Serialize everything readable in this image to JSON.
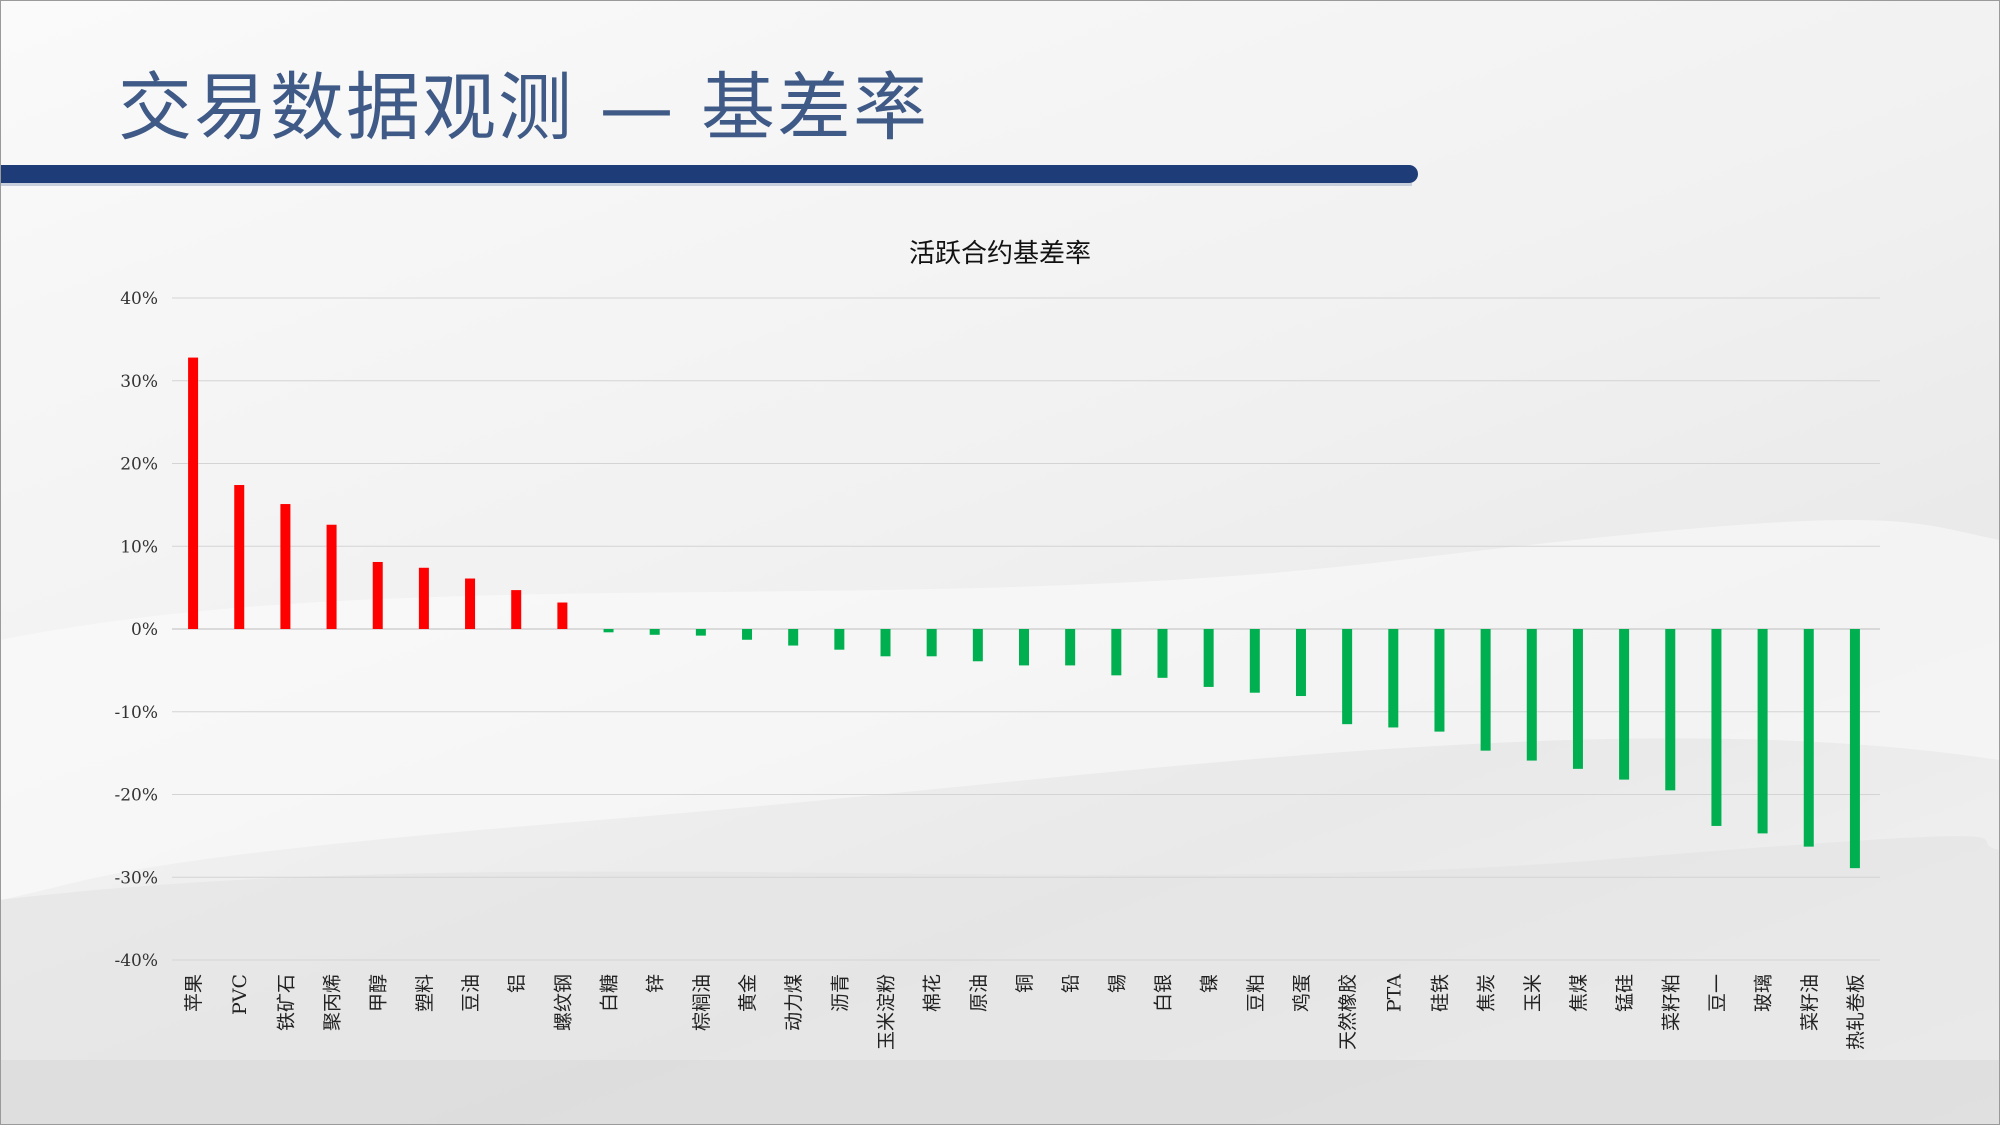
{
  "slide": {
    "title": "交易数据观测 — 基差率"
  },
  "chart_data": {
    "type": "bar",
    "title": "活跃合约基差率",
    "xlabel": "",
    "ylabel": "",
    "ylim": [
      -40,
      40
    ],
    "yticks": [
      40,
      30,
      20,
      10,
      0,
      -10,
      -20,
      -30,
      -40
    ],
    "ytick_labels": [
      "40%",
      "30%",
      "20%",
      "10%",
      "0%",
      "-10%",
      "-20%",
      "-30%",
      "-40%"
    ],
    "grid": true,
    "legend": "none",
    "positive_color": "#ff0000",
    "negative_color": "#00b050",
    "categories": [
      "苹果",
      "PVC",
      "铁矿石",
      "聚丙烯",
      "甲醇",
      "塑料",
      "豆油",
      "铝",
      "螺纹钢",
      "白糖",
      "锌",
      "棕榈油",
      "黄金",
      "动力煤",
      "沥青",
      "玉米淀粉",
      "棉花",
      "原油",
      "铜",
      "铅",
      "锡",
      "白银",
      "镍",
      "豆粕",
      "鸡蛋",
      "天然橡胶",
      "PTA",
      "硅铁",
      "焦炭",
      "玉米",
      "焦煤",
      "锰硅",
      "菜籽粕",
      "豆一",
      "玻璃",
      "菜籽油",
      "热轧卷板"
    ],
    "values": [
      32.8,
      17.4,
      15.1,
      12.6,
      8.1,
      7.4,
      6.1,
      4.7,
      3.2,
      -0.4,
      -0.7,
      -0.8,
      -1.3,
      -2.0,
      -2.5,
      -3.3,
      -3.3,
      -3.9,
      -4.4,
      -4.4,
      -5.6,
      -5.9,
      -7.0,
      -7.7,
      -8.1,
      -11.5,
      -11.9,
      -12.4,
      -14.7,
      -15.9,
      -16.9,
      -18.2,
      -19.5,
      -23.8,
      -24.7,
      -26.3,
      -28.9
    ]
  }
}
